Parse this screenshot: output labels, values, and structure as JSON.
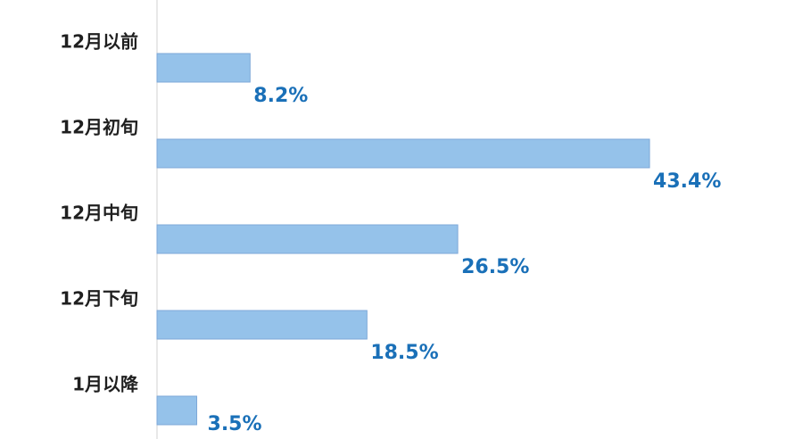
{
  "chart_data": {
    "type": "hbar",
    "categories": [
      "12月以前",
      "12月初旬",
      "12月中旬",
      "12月下旬",
      "1月以降"
    ],
    "values": [
      8.2,
      43.4,
      26.5,
      18.5,
      3.5
    ],
    "value_labels": [
      "8.2%",
      "43.4%",
      "26.5%",
      "18.5%",
      "3.5%"
    ],
    "color": "#95c2ea"
  }
}
